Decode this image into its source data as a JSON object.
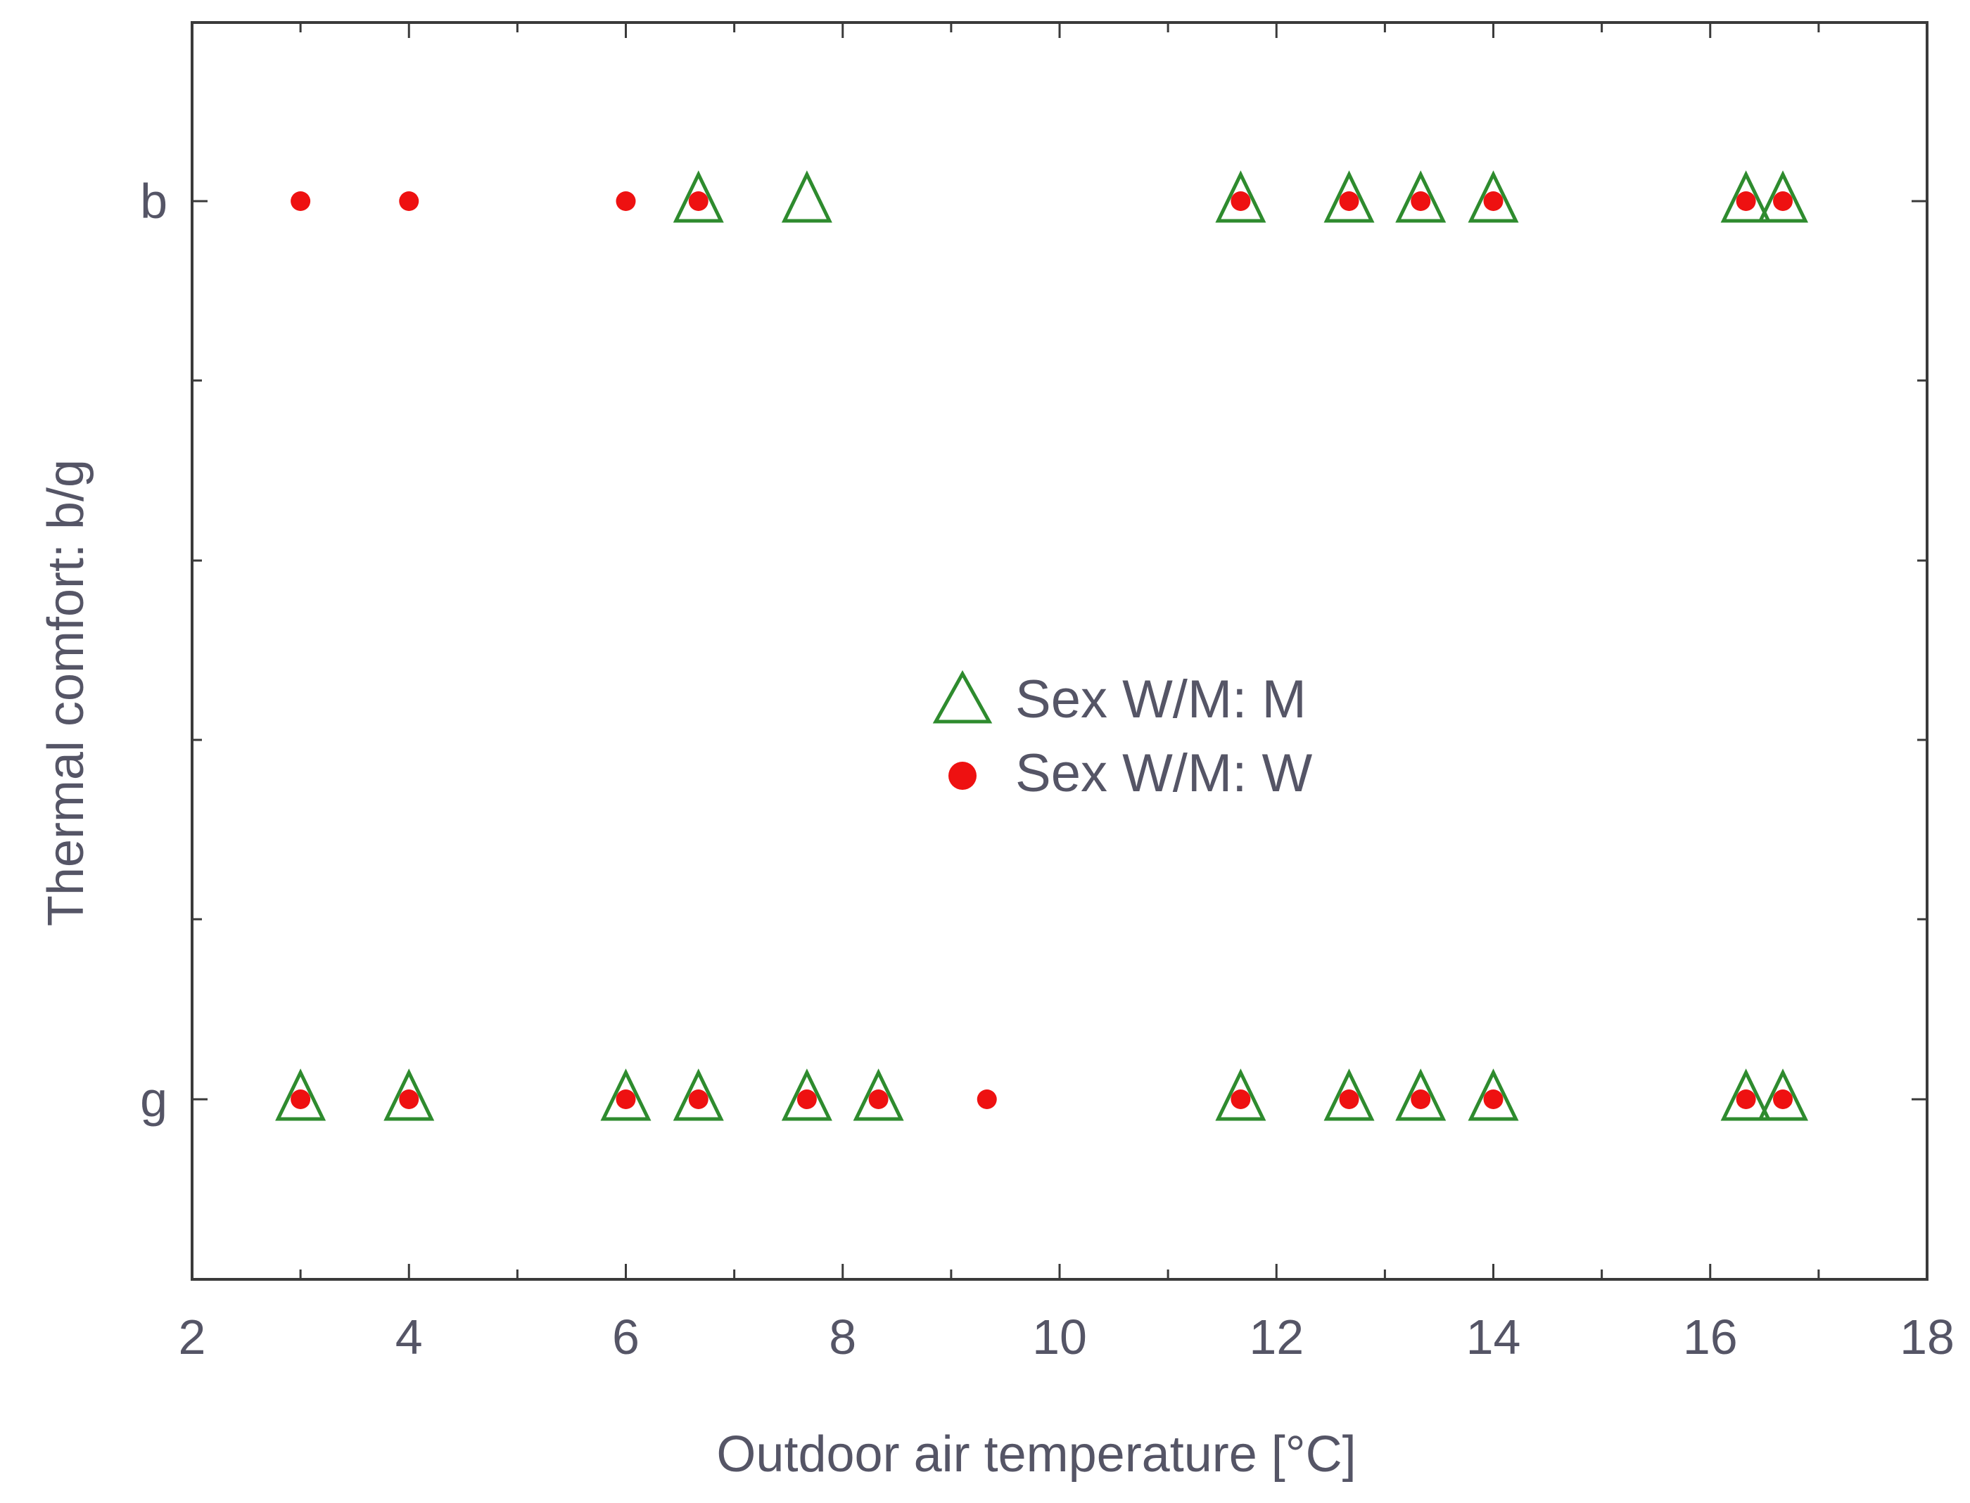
{
  "chart_data": {
    "type": "scatter",
    "xlabel": "Outdoor air temperature [°C]",
    "ylabel": "Thermal comfort: b/g",
    "xlim": [
      2,
      18
    ],
    "x_ticks": [
      "2",
      "4",
      "6",
      "8",
      "10",
      "12",
      "14",
      "16",
      "18"
    ],
    "y_categories": [
      "b",
      "g"
    ],
    "grid": false,
    "legend": {
      "position": "center",
      "entries": [
        "Sex W/M: M",
        "Sex W/M: W"
      ]
    },
    "series": [
      {
        "name": "Sex W/M: M",
        "marker": "open-triangle",
        "color": "#2e8b2e",
        "points": [
          {
            "x": 6.67,
            "y": "b"
          },
          {
            "x": 7.67,
            "y": "b"
          },
          {
            "x": 11.67,
            "y": "b"
          },
          {
            "x": 12.67,
            "y": "b"
          },
          {
            "x": 13.33,
            "y": "b"
          },
          {
            "x": 14.0,
            "y": "b"
          },
          {
            "x": 16.33,
            "y": "b"
          },
          {
            "x": 16.67,
            "y": "b"
          },
          {
            "x": 3.0,
            "y": "g"
          },
          {
            "x": 4.0,
            "y": "g"
          },
          {
            "x": 6.0,
            "y": "g"
          },
          {
            "x": 6.67,
            "y": "g"
          },
          {
            "x": 7.67,
            "y": "g"
          },
          {
            "x": 8.33,
            "y": "g"
          },
          {
            "x": 11.67,
            "y": "g"
          },
          {
            "x": 12.67,
            "y": "g"
          },
          {
            "x": 13.33,
            "y": "g"
          },
          {
            "x": 14.0,
            "y": "g"
          },
          {
            "x": 16.33,
            "y": "g"
          },
          {
            "x": 16.67,
            "y": "g"
          }
        ]
      },
      {
        "name": "Sex W/M: W",
        "marker": "filled-circle",
        "color": "#ee1111",
        "points": [
          {
            "x": 3.0,
            "y": "b"
          },
          {
            "x": 4.0,
            "y": "b"
          },
          {
            "x": 6.0,
            "y": "b"
          },
          {
            "x": 6.67,
            "y": "b"
          },
          {
            "x": 11.67,
            "y": "b"
          },
          {
            "x": 12.67,
            "y": "b"
          },
          {
            "x": 13.33,
            "y": "b"
          },
          {
            "x": 14.0,
            "y": "b"
          },
          {
            "x": 16.33,
            "y": "b"
          },
          {
            "x": 16.67,
            "y": "b"
          },
          {
            "x": 3.0,
            "y": "g"
          },
          {
            "x": 4.0,
            "y": "g"
          },
          {
            "x": 6.0,
            "y": "g"
          },
          {
            "x": 6.67,
            "y": "g"
          },
          {
            "x": 7.67,
            "y": "g"
          },
          {
            "x": 8.33,
            "y": "g"
          },
          {
            "x": 9.33,
            "y": "g"
          },
          {
            "x": 11.67,
            "y": "g"
          },
          {
            "x": 12.67,
            "y": "g"
          },
          {
            "x": 13.33,
            "y": "g"
          },
          {
            "x": 14.0,
            "y": "g"
          },
          {
            "x": 16.33,
            "y": "g"
          },
          {
            "x": 16.67,
            "y": "g"
          }
        ]
      }
    ]
  }
}
